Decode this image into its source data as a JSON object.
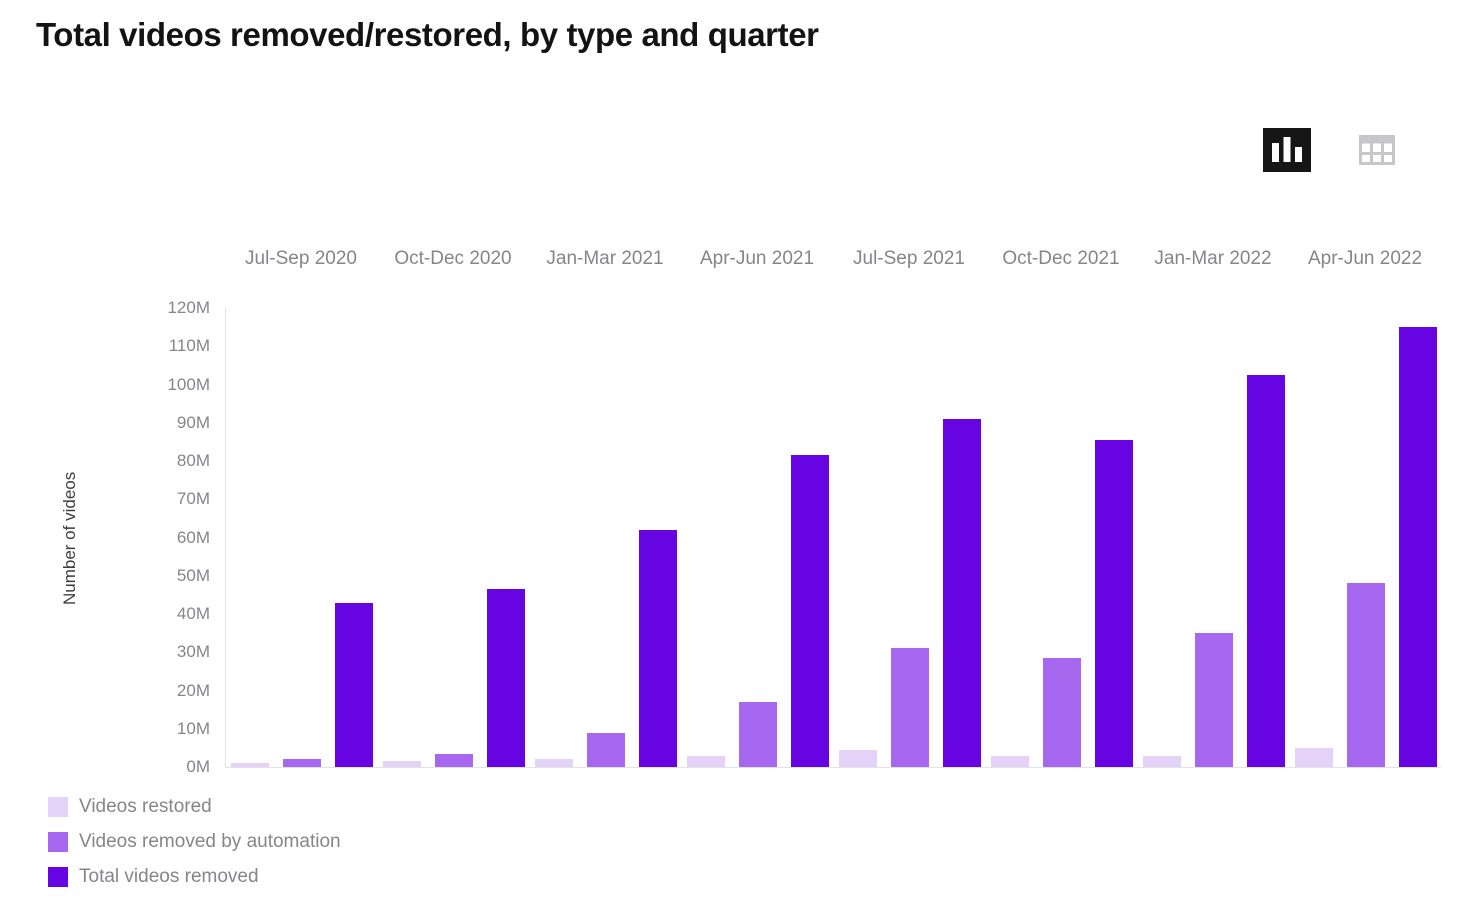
{
  "page": {
    "title": "Total videos removed/restored, by type and quarter"
  },
  "view_toggle": {
    "chart_view": {
      "icon": "bar-chart-icon",
      "active": true
    },
    "table_view": {
      "icon": "table-icon",
      "active": false
    }
  },
  "chart_data": {
    "type": "bar",
    "title": "Total videos removed/restored, by type and quarter",
    "categories": [
      "Jul-Sep 2020",
      "Oct-Dec 2020",
      "Jan-Mar 2021",
      "Apr-Jun 2021",
      "Jul-Sep 2021",
      "Oct-Dec 2021",
      "Jan-Mar 2022",
      "Apr-Jun 2022"
    ],
    "series": [
      {
        "name": "Videos restored",
        "color": "#e4d2f8",
        "values": [
          1,
          1.5,
          2,
          3,
          4.5,
          3,
          3,
          5
        ]
      },
      {
        "name": "Videos removed by automation",
        "color": "#a767ee",
        "values": [
          2,
          3.5,
          9,
          17,
          31,
          28.5,
          35,
          48
        ]
      },
      {
        "name": "Total videos removed",
        "color": "#6604e2",
        "values": [
          43,
          46.5,
          62,
          81.5,
          91,
          85.5,
          102.5,
          115
        ]
      }
    ],
    "unit": "M",
    "ylabel": "Number of videos",
    "ylim": [
      0,
      120
    ],
    "yticks": [
      "0M",
      "10M",
      "20M",
      "30M",
      "40M",
      "50M",
      "60M",
      "70M",
      "80M",
      "90M",
      "100M",
      "110M",
      "120M"
    ],
    "grid": false,
    "legend_position": "bottom-left",
    "x_labels_position": "top"
  },
  "legend": {
    "items": [
      {
        "label": "Videos restored",
        "color": "#e4d2f8"
      },
      {
        "label": "Videos removed by automation",
        "color": "#a767ee"
      },
      {
        "label": "Total videos removed",
        "color": "#6604e2"
      }
    ]
  }
}
